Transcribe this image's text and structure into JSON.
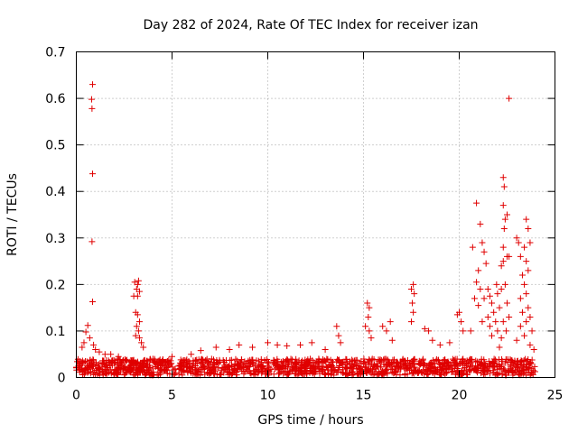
{
  "chart_data": {
    "type": "scatter",
    "title": "Day 282 of 2024, Rate Of TEC Index for receiver izan",
    "xlabel": "GPS time / hours",
    "ylabel": "ROTI / TECUs",
    "xlim": [
      0,
      25
    ],
    "ylim": [
      0,
      0.7
    ],
    "xticks": [
      "0",
      "5",
      "10",
      "15",
      "20",
      "25"
    ],
    "yticks": [
      "0",
      "0.1",
      "0.2",
      "0.3",
      "0.4",
      "0.5",
      "0.6",
      "0.7"
    ],
    "grid": true,
    "marker": "+",
    "color": "#e00000",
    "series": [
      {
        "points": [
          [
            0.85,
            0.63
          ],
          [
            0.8,
            0.598
          ],
          [
            0.82,
            0.578
          ],
          [
            0.85,
            0.438
          ],
          [
            0.82,
            0.292
          ],
          [
            0.85,
            0.163
          ],
          [
            0.6,
            0.112
          ],
          [
            0.5,
            0.098
          ],
          [
            0.7,
            0.085
          ],
          [
            0.4,
            0.075
          ],
          [
            0.9,
            0.07
          ],
          [
            0.3,
            0.065
          ],
          [
            1.0,
            0.06
          ],
          [
            1.2,
            0.055
          ],
          [
            1.5,
            0.05
          ],
          [
            1.8,
            0.05
          ],
          [
            2.2,
            0.045
          ],
          [
            3.05,
            0.205
          ],
          [
            3.15,
            0.19
          ],
          [
            3.2,
            0.2
          ],
          [
            3.25,
            0.208
          ],
          [
            3.3,
            0.185
          ],
          [
            3.0,
            0.175
          ],
          [
            3.2,
            0.175
          ],
          [
            3.1,
            0.14
          ],
          [
            3.2,
            0.135
          ],
          [
            3.3,
            0.12
          ],
          [
            3.15,
            0.11
          ],
          [
            3.25,
            0.1
          ],
          [
            3.1,
            0.09
          ],
          [
            3.3,
            0.085
          ],
          [
            3.4,
            0.075
          ],
          [
            3.5,
            0.065
          ],
          [
            4.0,
            0.04
          ],
          [
            5.0,
            0.045
          ],
          [
            6.0,
            0.05
          ],
          [
            6.5,
            0.058
          ],
          [
            7.3,
            0.065
          ],
          [
            8.0,
            0.06
          ],
          [
            8.5,
            0.07
          ],
          [
            9.2,
            0.065
          ],
          [
            10.0,
            0.075
          ],
          [
            10.5,
            0.07
          ],
          [
            11.0,
            0.068
          ],
          [
            11.7,
            0.07
          ],
          [
            12.3,
            0.075
          ],
          [
            13.0,
            0.06
          ],
          [
            13.6,
            0.11
          ],
          [
            13.7,
            0.09
          ],
          [
            13.8,
            0.075
          ],
          [
            15.2,
            0.16
          ],
          [
            15.3,
            0.15
          ],
          [
            15.25,
            0.13
          ],
          [
            15.1,
            0.11
          ],
          [
            15.3,
            0.1
          ],
          [
            15.4,
            0.085
          ],
          [
            16.0,
            0.11
          ],
          [
            16.2,
            0.1
          ],
          [
            16.4,
            0.12
          ],
          [
            16.5,
            0.08
          ],
          [
            17.6,
            0.2
          ],
          [
            17.5,
            0.19
          ],
          [
            17.65,
            0.18
          ],
          [
            17.55,
            0.16
          ],
          [
            17.6,
            0.14
          ],
          [
            17.5,
            0.12
          ],
          [
            18.2,
            0.105
          ],
          [
            18.4,
            0.1
          ],
          [
            18.6,
            0.08
          ],
          [
            19.0,
            0.07
          ],
          [
            19.5,
            0.075
          ],
          [
            19.9,
            0.135
          ],
          [
            20.0,
            0.14
          ],
          [
            20.1,
            0.12
          ],
          [
            20.2,
            0.1
          ],
          [
            20.7,
            0.28
          ],
          [
            20.9,
            0.375
          ],
          [
            21.1,
            0.33
          ],
          [
            21.2,
            0.29
          ],
          [
            21.3,
            0.27
          ],
          [
            21.0,
            0.23
          ],
          [
            21.4,
            0.245
          ],
          [
            20.9,
            0.205
          ],
          [
            21.1,
            0.19
          ],
          [
            20.8,
            0.17
          ],
          [
            21.0,
            0.155
          ],
          [
            21.3,
            0.17
          ],
          [
            21.5,
            0.19
          ],
          [
            21.6,
            0.175
          ],
          [
            21.7,
            0.16
          ],
          [
            21.8,
            0.14
          ],
          [
            21.5,
            0.13
          ],
          [
            21.9,
            0.12
          ],
          [
            21.6,
            0.11
          ],
          [
            22.0,
            0.1
          ],
          [
            21.7,
            0.09
          ],
          [
            20.6,
            0.1
          ],
          [
            21.2,
            0.12
          ],
          [
            21.95,
            0.2
          ],
          [
            22.0,
            0.18
          ],
          [
            22.1,
            0.15
          ],
          [
            22.1,
            0.065
          ],
          [
            22.3,
            0.43
          ],
          [
            22.35,
            0.41
          ],
          [
            22.3,
            0.37
          ],
          [
            22.4,
            0.34
          ],
          [
            22.5,
            0.35
          ],
          [
            22.35,
            0.32
          ],
          [
            22.3,
            0.28
          ],
          [
            22.5,
            0.26
          ],
          [
            22.6,
            0.26
          ],
          [
            22.3,
            0.25
          ],
          [
            22.2,
            0.24
          ],
          [
            22.4,
            0.2
          ],
          [
            22.2,
            0.19
          ],
          [
            22.5,
            0.16
          ],
          [
            22.6,
            0.13
          ],
          [
            22.3,
            0.12
          ],
          [
            22.45,
            0.1
          ],
          [
            22.2,
            0.085
          ],
          [
            22.6,
            0.6
          ],
          [
            23.0,
            0.3
          ],
          [
            23.1,
            0.29
          ],
          [
            23.5,
            0.34
          ],
          [
            23.6,
            0.32
          ],
          [
            23.7,
            0.29
          ],
          [
            23.4,
            0.28
          ],
          [
            23.2,
            0.26
          ],
          [
            23.5,
            0.25
          ],
          [
            23.6,
            0.23
          ],
          [
            23.3,
            0.22
          ],
          [
            23.4,
            0.2
          ],
          [
            23.5,
            0.18
          ],
          [
            23.2,
            0.17
          ],
          [
            23.6,
            0.15
          ],
          [
            23.3,
            0.14
          ],
          [
            23.7,
            0.13
          ],
          [
            23.5,
            0.12
          ],
          [
            23.2,
            0.11
          ],
          [
            23.8,
            0.1
          ],
          [
            23.4,
            0.09
          ],
          [
            23.0,
            0.08
          ],
          [
            23.7,
            0.07
          ],
          [
            23.9,
            0.06
          ]
        ]
      }
    ],
    "baseline": {
      "x_start": 0,
      "x_end": 24,
      "level_min": 0.005,
      "level_max": 0.04
    }
  }
}
